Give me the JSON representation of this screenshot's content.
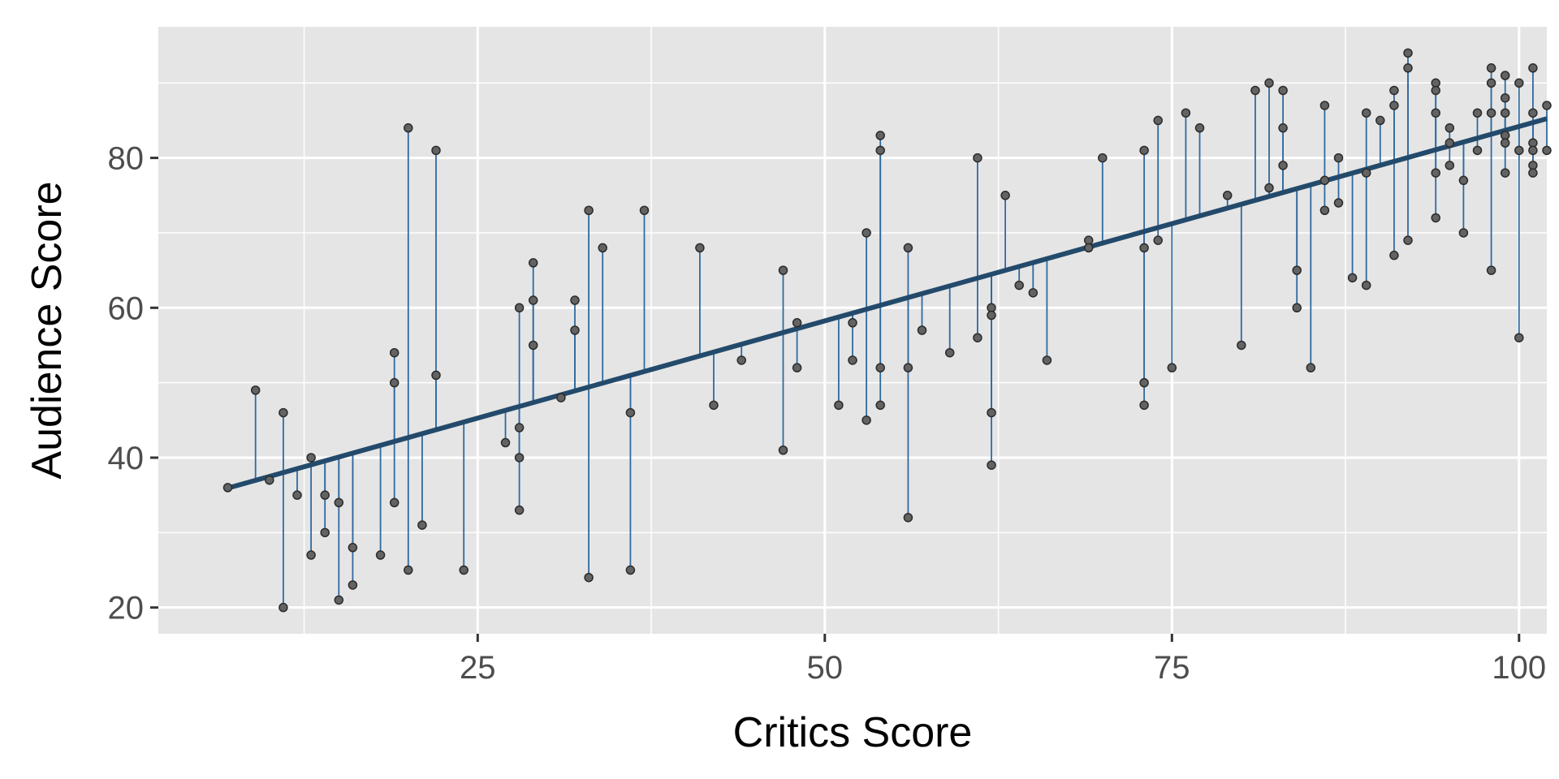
{
  "chart_data": {
    "type": "scatter",
    "xlabel": "Critics Score",
    "ylabel": "Audience Score",
    "xlim": [
      2,
      102
    ],
    "ylim": [
      16.5,
      97.5
    ],
    "x_ticks": [
      25,
      50,
      75,
      100
    ],
    "y_ticks": [
      20,
      40,
      60,
      80
    ],
    "grid": true,
    "colors": {
      "panel": "#e5e5e5",
      "grid": "#ffffff",
      "residual_line": "#2f6aa0",
      "fit_line": "#234a6b",
      "point_fill": "#636363",
      "point_edge": "#2b2b2b",
      "tick_text": "#4d4d4d"
    },
    "fit": {
      "intercept": 32.3,
      "slope": 0.519
    },
    "points": [
      [
        7,
        36
      ],
      [
        9,
        49
      ],
      [
        10,
        37
      ],
      [
        11,
        46
      ],
      [
        11,
        20
      ],
      [
        12,
        35
      ],
      [
        13,
        40
      ],
      [
        13,
        27
      ],
      [
        14,
        35
      ],
      [
        14,
        30
      ],
      [
        15,
        34
      ],
      [
        15,
        21
      ],
      [
        16,
        28
      ],
      [
        16,
        23
      ],
      [
        18,
        27
      ],
      [
        19,
        54
      ],
      [
        19,
        50
      ],
      [
        19,
        34
      ],
      [
        20,
        84
      ],
      [
        20,
        25
      ],
      [
        21,
        31
      ],
      [
        22,
        81
      ],
      [
        22,
        51
      ],
      [
        24,
        25
      ],
      [
        27,
        42
      ],
      [
        28,
        60
      ],
      [
        28,
        44
      ],
      [
        28,
        40
      ],
      [
        28,
        33
      ],
      [
        29,
        66
      ],
      [
        29,
        61
      ],
      [
        29,
        55
      ],
      [
        31,
        48
      ],
      [
        32,
        61
      ],
      [
        32,
        57
      ],
      [
        33,
        73
      ],
      [
        33,
        24
      ],
      [
        34,
        68
      ],
      [
        36,
        46
      ],
      [
        36,
        25
      ],
      [
        37,
        73
      ],
      [
        41,
        68
      ],
      [
        42,
        47
      ],
      [
        44,
        53
      ],
      [
        47,
        65
      ],
      [
        47,
        41
      ],
      [
        48,
        58
      ],
      [
        48,
        52
      ],
      [
        51,
        47
      ],
      [
        52,
        58
      ],
      [
        52,
        53
      ],
      [
        53,
        70
      ],
      [
        53,
        45
      ],
      [
        54,
        83
      ],
      [
        54,
        81
      ],
      [
        54,
        52
      ],
      [
        54,
        47
      ],
      [
        56,
        68
      ],
      [
        56,
        52
      ],
      [
        56,
        32
      ],
      [
        57,
        57
      ],
      [
        59,
        54
      ],
      [
        61,
        80
      ],
      [
        61,
        56
      ],
      [
        62,
        60
      ],
      [
        62,
        59
      ],
      [
        62,
        46
      ],
      [
        62,
        39
      ],
      [
        63,
        75
      ],
      [
        64,
        63
      ],
      [
        65,
        62
      ],
      [
        66,
        53
      ],
      [
        69,
        69
      ],
      [
        69,
        68
      ],
      [
        70,
        80
      ],
      [
        73,
        81
      ],
      [
        73,
        68
      ],
      [
        73,
        50
      ],
      [
        73,
        47
      ],
      [
        74,
        85
      ],
      [
        74,
        69
      ],
      [
        75,
        52
      ],
      [
        76,
        86
      ],
      [
        77,
        84
      ],
      [
        79,
        75
      ],
      [
        80,
        55
      ],
      [
        81,
        89
      ],
      [
        82,
        90
      ],
      [
        82,
        76
      ],
      [
        83,
        89
      ],
      [
        83,
        84
      ],
      [
        83,
        79
      ],
      [
        84,
        65
      ],
      [
        84,
        60
      ],
      [
        85,
        52
      ],
      [
        86,
        87
      ],
      [
        86,
        77
      ],
      [
        86,
        73
      ],
      [
        87,
        80
      ],
      [
        87,
        74
      ],
      [
        88,
        64
      ],
      [
        89,
        86
      ],
      [
        89,
        78
      ],
      [
        89,
        63
      ],
      [
        90,
        85
      ],
      [
        91,
        89
      ],
      [
        91,
        87
      ],
      [
        91,
        67
      ],
      [
        92,
        94
      ],
      [
        92,
        92
      ],
      [
        92,
        69
      ],
      [
        94,
        90
      ],
      [
        94,
        89
      ],
      [
        94,
        86
      ],
      [
        94,
        78
      ],
      [
        94,
        72
      ],
      [
        95,
        84
      ],
      [
        95,
        82
      ],
      [
        95,
        79
      ],
      [
        96,
        77
      ],
      [
        96,
        70
      ],
      [
        97,
        86
      ],
      [
        97,
        81
      ],
      [
        98,
        92
      ],
      [
        98,
        90
      ],
      [
        98,
        86
      ],
      [
        98,
        65
      ],
      [
        99,
        91
      ],
      [
        99,
        88
      ],
      [
        99,
        86
      ],
      [
        99,
        83
      ],
      [
        99,
        82
      ],
      [
        99,
        78
      ],
      [
        100,
        90
      ],
      [
        100,
        81
      ],
      [
        100,
        56
      ],
      [
        101,
        92
      ],
      [
        101,
        86
      ],
      [
        101,
        82
      ],
      [
        101,
        81
      ],
      [
        101,
        79
      ],
      [
        101,
        78
      ],
      [
        102,
        87
      ],
      [
        102,
        81
      ]
    ]
  }
}
